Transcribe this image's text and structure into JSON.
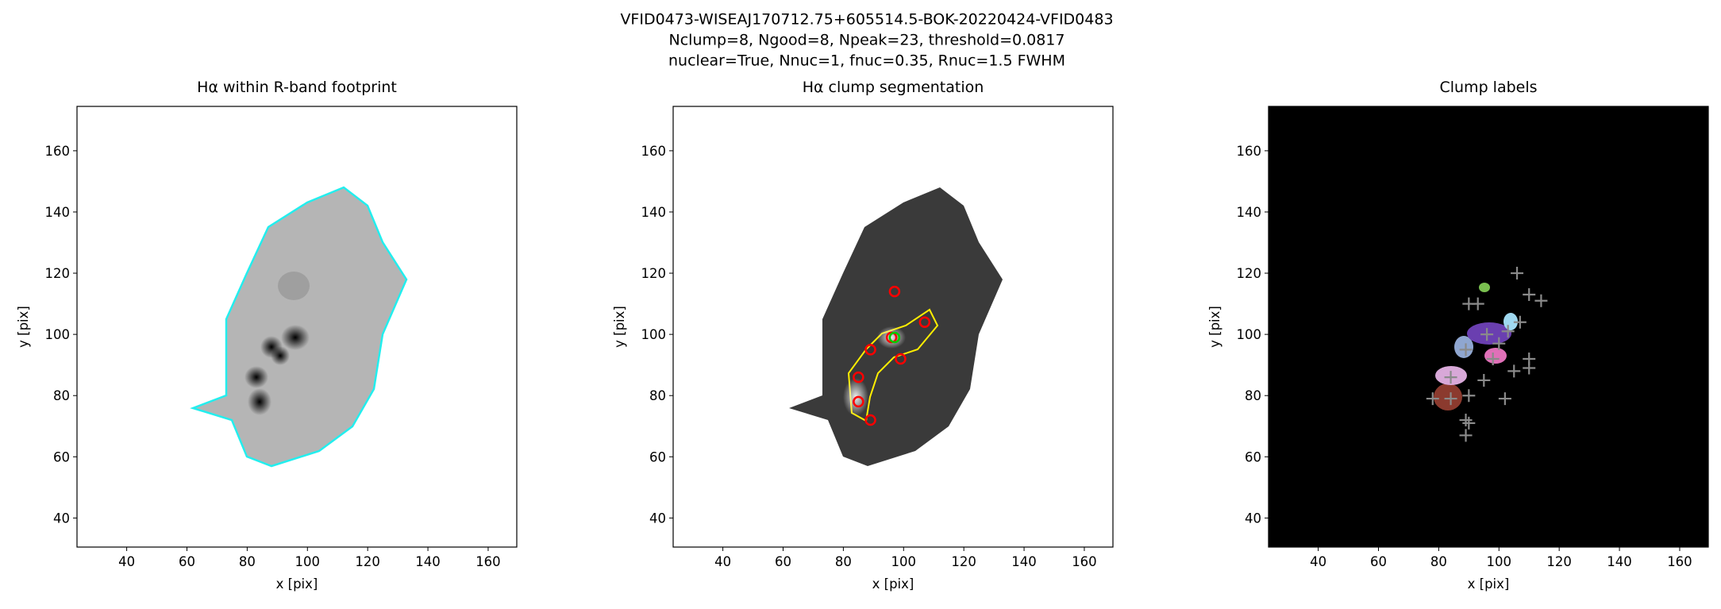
{
  "figure": {
    "title_lines": [
      "VFID0473-WISEAJ170712.75+605514.5-BOK-20220424-VFID0483",
      "Nclump=8, Ngood=8, Npeak=23, threshold=0.0817",
      "nuclear=True, Nnuc=1, fnuc=0.35, Rnuc=1.5 FWHM"
    ]
  },
  "chart_data": [
    {
      "type": "image",
      "title": "Hα within R-band footprint",
      "xlabel": "x [pix]",
      "ylabel": "y [pix]",
      "xlim": [
        23.5,
        169.5
      ],
      "ylim": [
        30.5,
        174.5
      ],
      "xticks": [
        40,
        60,
        80,
        100,
        120,
        140,
        160
      ],
      "yticks": [
        40,
        60,
        80,
        100,
        120,
        140,
        160
      ],
      "series": []
    },
    {
      "type": "image",
      "title": "Hα clump segmentation",
      "xlabel": "x [pix]",
      "ylabel": "y [pix]",
      "xlim": [
        23.5,
        169.5
      ],
      "ylim": [
        30.5,
        174.5
      ],
      "xticks": [
        40,
        60,
        80,
        100,
        120,
        140,
        160
      ],
      "yticks": [
        40,
        60,
        80,
        100,
        120,
        140,
        160
      ],
      "series": [
        {
          "marker": "circle",
          "color": "#ff0000",
          "x": [
            97,
            107,
            96,
            89,
            99,
            85,
            85,
            89
          ],
          "values": [
            114,
            104,
            99,
            95,
            92,
            86,
            78,
            72
          ]
        },
        {
          "marker": "circle",
          "color": "#00cc00",
          "x": [
            97
          ],
          "values": [
            99
          ]
        }
      ]
    },
    {
      "type": "image",
      "title": "Clump labels",
      "xlabel": "x [pix]",
      "ylabel": "y [pix]",
      "xlim": [
        23.5,
        169.5
      ],
      "ylim": [
        30.5,
        174.5
      ],
      "xticks": [
        40,
        60,
        80,
        100,
        120,
        140,
        160
      ],
      "yticks": [
        40,
        60,
        80,
        100,
        120,
        140,
        160
      ],
      "series": [
        {
          "marker": "plus",
          "color": "#8a8a8a",
          "x": [
            106,
            90,
            93,
            114,
            110,
            107,
            96,
            103,
            100,
            110,
            105,
            110,
            89,
            98,
            95,
            84,
            78,
            84,
            90,
            102,
            89,
            90,
            89
          ],
          "values": [
            120,
            110,
            110,
            111,
            113,
            104,
            100,
            101,
            97,
            92,
            88,
            89,
            95,
            92,
            85,
            86,
            79,
            79,
            80,
            79,
            72,
            71,
            67
          ]
        }
      ]
    }
  ]
}
